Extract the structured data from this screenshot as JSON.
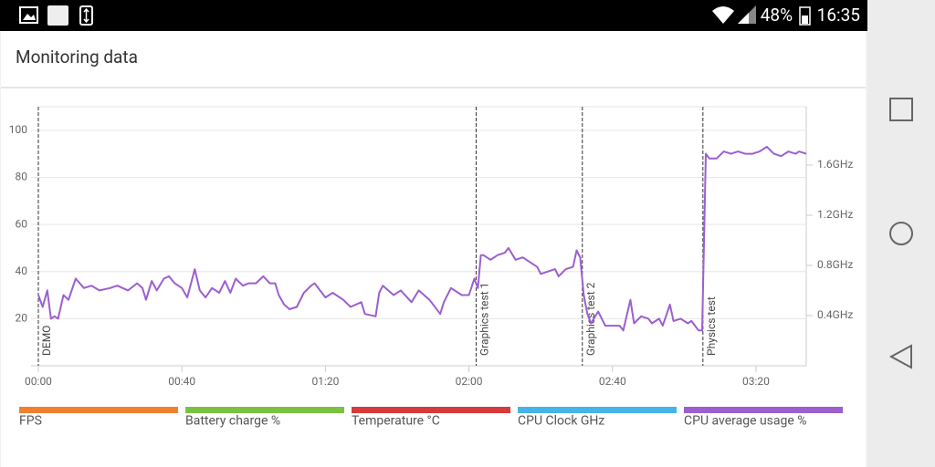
{
  "status_bar": {
    "battery": "48%",
    "time": "16:35"
  },
  "header": {
    "title": "Monitoring data"
  },
  "chart_data": {
    "type": "line",
    "xlim": [
      0,
      214
    ],
    "xticks": [
      {
        "value": 0,
        "label": "00:00"
      },
      {
        "value": 40,
        "label": "00:40"
      },
      {
        "value": 80,
        "label": "01:20"
      },
      {
        "value": 120,
        "label": "02:00"
      },
      {
        "value": 160,
        "label": "02:40"
      },
      {
        "value": 200,
        "label": "03:20"
      }
    ],
    "ylim": [
      0,
      110
    ],
    "yticks": [
      20,
      40,
      60,
      80,
      100
    ],
    "y2lim": [
      0,
      2.065
    ],
    "y2ticks": [
      {
        "value": 0.4,
        "label": "0.4GHz"
      },
      {
        "value": 0.8,
        "label": "0.8GHz"
      },
      {
        "value": 1.2,
        "label": "1.2GHz"
      },
      {
        "value": 1.6,
        "label": "1.6GHz"
      }
    ],
    "grid": true,
    "annotations": [
      {
        "x": 0,
        "text": "DEMO"
      },
      {
        "x": 122,
        "text": "Graphics test 1"
      },
      {
        "x": 151.6,
        "text": "Graphics test 2"
      },
      {
        "x": 185.2,
        "text": "Physics test"
      }
    ],
    "series": [
      {
        "name": "FPS",
        "color": "#f08030",
        "x": [],
        "values": []
      },
      {
        "name": "Battery charge %",
        "color": "#7cc242",
        "x": [],
        "values": []
      },
      {
        "name": "Temperature °C",
        "color": "#d63a3a",
        "x": [],
        "values": []
      },
      {
        "name": "CPU Clock GHz",
        "color": "#45b4e6",
        "x": [],
        "values": []
      },
      {
        "name": "CPU average usage %",
        "color": "#9b5fcf",
        "x": [
          0,
          1.2,
          2.5,
          3.5,
          4.5,
          5.5,
          7,
          8.4,
          10.4,
          12.7,
          14.8,
          17,
          20,
          22,
          25,
          27.5,
          29,
          30,
          31.6,
          33,
          35,
          36.4,
          38,
          40,
          41.5,
          43.6,
          45,
          46.6,
          48.4,
          50.4,
          52,
          53.5,
          55,
          57,
          58.6,
          60.6,
          62.7,
          64.5,
          66,
          67,
          68.5,
          70,
          72,
          74,
          76,
          77,
          80,
          82,
          85,
          87,
          90,
          91,
          94,
          95,
          96,
          99,
          101,
          104,
          106,
          109,
          112,
          113,
          115,
          118,
          120,
          121.5,
          122.5,
          123.3,
          124,
          126,
          128,
          130,
          131,
          133,
          135,
          137,
          139,
          140,
          142,
          144,
          145,
          147,
          149,
          150,
          151,
          152,
          153,
          154,
          156,
          158,
          160,
          162,
          163,
          165,
          166,
          168,
          170,
          171,
          173,
          174,
          176,
          177,
          179,
          181,
          182,
          184,
          185,
          186,
          187,
          189,
          191,
          193,
          195,
          197,
          199,
          201,
          203,
          205,
          207,
          209,
          211,
          212,
          214
        ],
        "values": [
          30,
          25,
          32,
          20,
          21,
          20,
          30,
          28,
          37,
          33,
          34,
          32,
          33,
          34,
          32,
          35,
          33,
          28,
          36,
          32,
          37,
          38,
          35,
          33,
          29,
          41,
          32,
          29,
          33,
          31,
          36,
          31,
          37,
          34,
          35,
          35,
          38,
          35,
          35,
          30,
          26,
          24,
          25,
          31,
          34,
          35,
          29,
          31,
          28,
          25,
          27,
          22,
          21,
          31,
          34,
          30,
          32,
          27,
          32,
          28,
          22,
          27,
          33,
          30,
          30,
          37,
          33,
          47,
          47,
          45,
          47,
          48,
          50,
          45,
          46,
          44,
          42,
          39,
          40,
          41,
          38,
          41,
          42,
          49,
          46,
          30,
          22,
          18,
          23,
          17,
          17,
          17,
          15,
          28,
          18,
          21,
          20,
          18,
          20,
          17,
          26,
          19,
          20,
          18,
          19,
          15,
          15,
          90,
          88,
          88,
          91,
          90,
          91,
          90,
          90,
          91,
          93,
          90,
          89,
          91,
          90,
          91,
          90
        ]
      }
    ]
  }
}
